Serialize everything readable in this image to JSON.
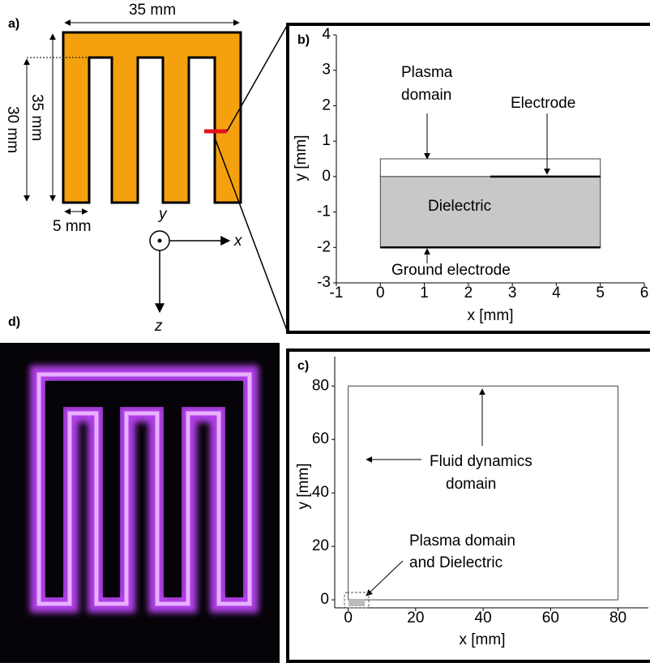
{
  "panel_a": {
    "label": "a)",
    "width_label": "35 mm",
    "height_label": "35 mm",
    "inner_label": "30 mm",
    "gap_label": "5 mm",
    "axis_x": "x",
    "axis_y": "y",
    "axis_z": "z"
  },
  "panel_b": {
    "label": "b)",
    "xlabel": "x [mm]",
    "ylabel": "y [mm]",
    "xlim": [
      -1,
      6
    ],
    "ylim": [
      -3,
      4
    ],
    "xticks": [
      -1,
      0,
      1,
      2,
      3,
      4,
      5,
      6
    ],
    "yticks": [
      -3,
      -2,
      -1,
      0,
      1,
      2,
      3,
      4
    ],
    "plasma_domain": {
      "x": [
        0,
        5
      ],
      "y": [
        0,
        0.5
      ]
    },
    "dielectric": {
      "x": [
        0,
        5
      ],
      "y": [
        -2,
        0
      ]
    },
    "electrode": {
      "x": [
        2.5,
        5
      ],
      "y": 0
    },
    "ground_electrode": {
      "x": [
        0,
        5
      ],
      "y": -2
    },
    "plasma_label": [
      "Plasma",
      "domain"
    ],
    "electrode_label": "Electrode",
    "dielectric_label": "Dielectric",
    "ground_label": "Ground electrode"
  },
  "panel_c": {
    "label": "c)",
    "xlabel": "x [mm]",
    "ylabel": "y [mm]",
    "xlim": [
      -4,
      89
    ],
    "ylim": [
      -3,
      91
    ],
    "xticks": [
      0,
      20,
      40,
      60,
      80
    ],
    "yticks": [
      0,
      20,
      40,
      60,
      80
    ],
    "fluid_domain": {
      "x": [
        0,
        80
      ],
      "y": [
        0,
        80
      ]
    },
    "fluid_label": [
      "Fluid dynamics",
      "domain"
    ],
    "plasma_label": [
      "Plasma domain",
      "and Dielectric"
    ]
  },
  "panel_d": {
    "label": "d)"
  }
}
